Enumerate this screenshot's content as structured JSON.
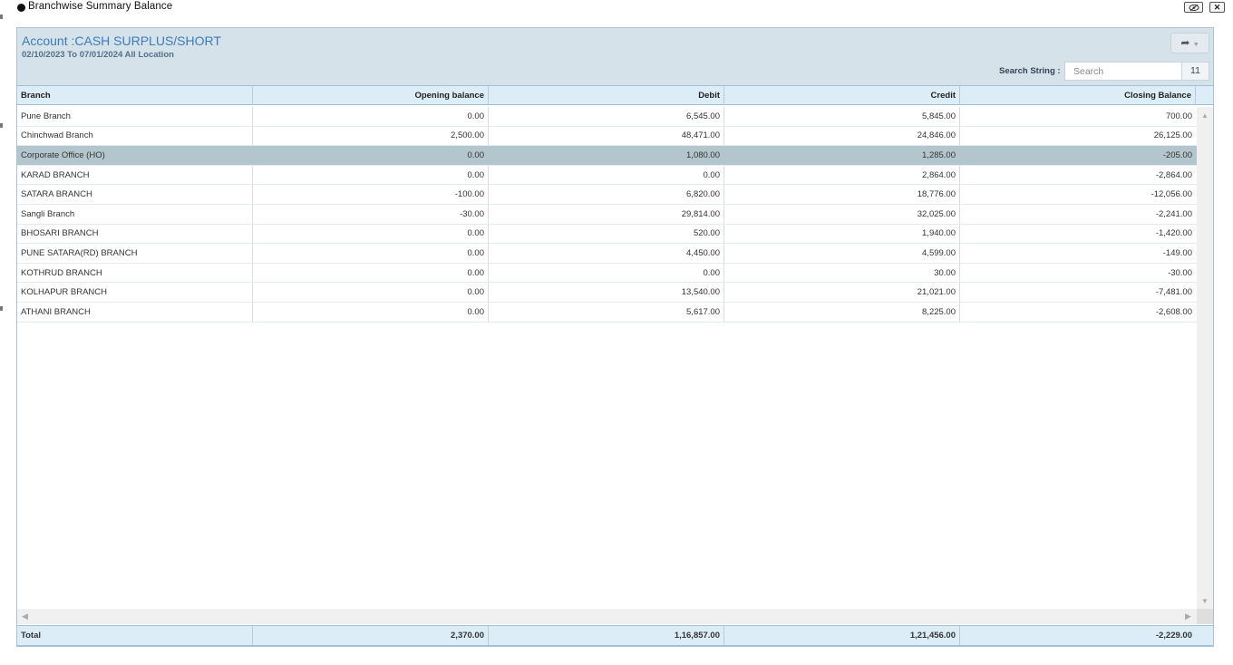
{
  "window": {
    "title": "Branchwise Summary Balance"
  },
  "header": {
    "account": "Account :CASH SURPLUS/SHORT",
    "date_range": "02/10/2023 To 07/01/2024 All Location",
    "search_label": "Search String :",
    "search_placeholder": "Search",
    "record_count": "11"
  },
  "columns": [
    "Branch",
    "Opening balance",
    "Debit",
    "Credit",
    "Closing Balance"
  ],
  "rows": [
    [
      "Pune Branch",
      "0.00",
      "6,545.00",
      "5,845.00",
      "700.00"
    ],
    [
      "Chinchwad Branch",
      "2,500.00",
      "48,471.00",
      "24,846.00",
      "26,125.00"
    ],
    [
      "Corporate Office (HO)",
      "0.00",
      "1,080.00",
      "1,285.00",
      "-205.00"
    ],
    [
      "KARAD BRANCH",
      "0.00",
      "0.00",
      "2,864.00",
      "-2,864.00"
    ],
    [
      "SATARA BRANCH",
      "-100.00",
      "6,820.00",
      "18,776.00",
      "-12,056.00"
    ],
    [
      "Sangli Branch",
      "-30.00",
      "29,814.00",
      "32,025.00",
      "-2,241.00"
    ],
    [
      "BHOSARI BRANCH",
      "0.00",
      "520.00",
      "1,940.00",
      "-1,420.00"
    ],
    [
      "PUNE SATARA(RD) BRANCH",
      "0.00",
      "4,450.00",
      "4,599.00",
      "-149.00"
    ],
    [
      "KOTHRUD BRANCH",
      "0.00",
      "0.00",
      "30.00",
      "-30.00"
    ],
    [
      "KOLHAPUR BRANCH",
      "0.00",
      "13,540.00",
      "21,021.00",
      "-7,481.00"
    ],
    [
      "ATHANI BRANCH",
      "0.00",
      "5,617.00",
      "8,225.00",
      "-2,608.00"
    ]
  ],
  "selected_row": 2,
  "totals": [
    "Total",
    "2,370.00",
    "1,16,857.00",
    "1,21,456.00",
    "-2,229.00"
  ],
  "icons": {
    "window_bullet": "bullet-icon",
    "hide": "eye-slash-icon",
    "close": "close-icon",
    "share": "share-icon"
  }
}
